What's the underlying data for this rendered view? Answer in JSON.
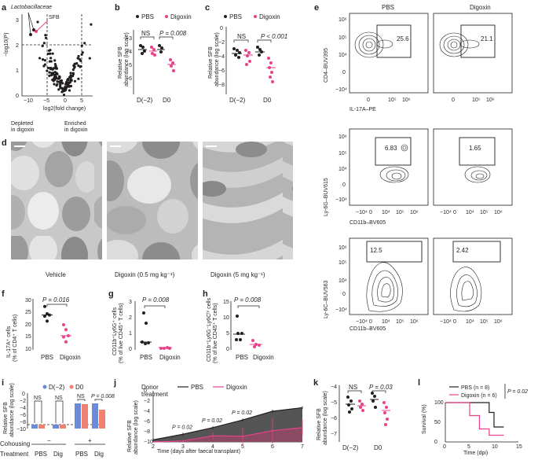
{
  "colors": {
    "pbs": "#231f20",
    "digoxin": "#e8428b",
    "blue": "#6a8bd8",
    "salmon": "#f08070",
    "sem_fill": "#555555",
    "lacto": "#e8428b"
  },
  "panel_labels": {
    "a": "a",
    "b": "b",
    "c": "c",
    "d": "d",
    "e": "e",
    "f": "f",
    "g": "g",
    "h": "h",
    "i": "i",
    "j": "j",
    "k": "k",
    "l": "l"
  },
  "legend": {
    "pbs": "PBS",
    "digoxin": "Digoxin"
  },
  "panel_a": {
    "ylabel": "−log10(P)",
    "xlabel": "log2(fold change)",
    "annot_lacto": "Lactobacillaceae",
    "annot_sfb": "SFB",
    "depleted": [
      "Depleted",
      "in digoxin"
    ],
    "enriched": [
      "Enriched",
      "in digoxin"
    ],
    "xticks": [
      "−10",
      "−5",
      "0",
      "5"
    ],
    "yticks": [
      "0",
      "1",
      "2",
      "3"
    ]
  },
  "panel_b": {
    "ylabel": [
      "Relative SFB",
      "abundance (log scale)"
    ],
    "stats": [
      "NS",
      "P = 0.008"
    ]
  },
  "panel_c": {
    "ylabel": [
      "Relative SFB",
      "abundance (log scale)"
    ],
    "stats": [
      "NS",
      "P < 0.001"
    ]
  },
  "panel_d": {
    "captions": [
      "Vehicle",
      "Digoxin (0.5 mg kg⁻¹)",
      "Digoxin (5 mg kg⁻¹)"
    ]
  },
  "panel_e": {
    "col_titles": [
      "PBS",
      "Digoxin"
    ],
    "row1": {
      "ylabel": "CD4–BUV395",
      "xlabel": "IL-17A–PE",
      "gates": [
        "25.6",
        "21.1"
      ]
    },
    "row2": {
      "ylabel": "Ly-6G–BUV615",
      "xlabel": "CD11b–BV605",
      "gates": [
        "6.83",
        "1.65"
      ]
    },
    "row3": {
      "ylabel": "Ly-6C–BUV563",
      "xlabel": "CD11b–BV605",
      "gates": [
        "12.5",
        "2.42"
      ]
    },
    "yticks": [
      "10⁶",
      "10⁵",
      "10⁴",
      "0",
      "−10⁴"
    ],
    "xticks": [
      "0",
      "10⁵",
      "10⁶"
    ],
    "xticks2": [
      "−10⁴",
      "0",
      "10⁴",
      "10⁵",
      "10⁶"
    ]
  },
  "panel_f": {
    "ylabel": [
      "IL-17A⁺ cells",
      "(% of CD4⁺ T cells)"
    ],
    "stat": "P = 0.016",
    "cats": [
      "PBS",
      "Digoxin"
    ],
    "yticks": [
      "30",
      "25",
      "20",
      "15",
      "10"
    ]
  },
  "panel_g": {
    "ylabel": [
      "CD11b⁺Ly6G⁺ cells",
      "(% of live CD45⁺ T cells)"
    ],
    "stat": "P = 0.008",
    "cats": [
      "PBS",
      "Digoxin"
    ],
    "yticks": [
      "3",
      "2",
      "1",
      "0"
    ]
  },
  "panel_h": {
    "ylabel": [
      "CD11b⁺Ly6G⁻Ly6Cʰⁱ cells",
      "(% of live CD45⁺ T cells)"
    ],
    "stat": "P = 0.008",
    "cats": [
      "PBS",
      "Digoxin"
    ],
    "yticks": [
      "15",
      "10",
      "5",
      "0"
    ]
  },
  "panel_i": {
    "ylabel": [
      "Relative SFB",
      "abundance (log scale)"
    ],
    "legend": [
      "D(−2)",
      "D0"
    ],
    "stats": [
      "NS",
      "NS",
      "NS",
      "P = 0.008"
    ],
    "cohousing_label": "Cohousing",
    "cohousing_vals": [
      "−",
      "+"
    ],
    "treatment_label": "Treatment",
    "treatments": [
      "PBS",
      "Dig",
      "PBS",
      "Dig"
    ],
    "yticks": [
      "0",
      "−2",
      "−4",
      "−6",
      "−8",
      "−10"
    ]
  },
  "panel_j": {
    "ylabel": [
      "Relative SFB",
      "abundance (log scale)"
    ],
    "xlabel": "Time (days after faecal transplant)",
    "legend_title": [
      "Donor",
      "treatment"
    ],
    "stats": [
      "P = 0.02",
      "P = 0.02",
      "P = 0.02"
    ],
    "xticks": [
      "2",
      "3",
      "4",
      "5",
      "6",
      "7"
    ],
    "yticks": [
      "0",
      "−2",
      "−4",
      "−6",
      "−8",
      "−10"
    ]
  },
  "panel_k": {
    "ylabel": [
      "Relative SFB",
      "abundance (log scale)"
    ],
    "stats": [
      "NS",
      "P = 0.03"
    ],
    "yticks": [
      "−4",
      "−5",
      "−6",
      "−7"
    ]
  },
  "panel_l": {
    "ylabel": "Survival (%)",
    "xlabel": "Time (dpi)",
    "legend": [
      "PBS (n = 8)",
      "Digoxin (n = 6)"
    ],
    "stat": "P = 0.02",
    "xticks": [
      "0",
      "5",
      "10",
      "15"
    ],
    "yticks": [
      "100",
      "50",
      "0"
    ]
  },
  "axis_ticks": {
    "b": [
      "−3",
      "−4",
      "−5",
      "−6"
    ],
    "b_x": [
      "D(−2)",
      "D0"
    ],
    "c": [
      "0",
      "−2",
      "−4",
      "−6",
      "−8"
    ],
    "c_x": [
      "D(−2)",
      "D0"
    ],
    "k_x": [
      "D(−2)",
      "D0"
    ]
  },
  "chart_data": [
    {
      "panel": "j",
      "type": "area",
      "x": [
        2,
        3,
        4,
        5,
        6,
        7
      ],
      "series": [
        {
          "name": "PBS",
          "values": [
            -9.6,
            -8.5,
            -7.2,
            -5.7,
            -4.0,
            -3.3
          ],
          "err": [
            0.3,
            0.3,
            0.3,
            0.3,
            0.3,
            0.3
          ]
        },
        {
          "name": "Digoxin",
          "values": [
            -10.0,
            -9.8,
            -8.8,
            -8.9,
            -7.8,
            -7.2
          ],
          "err": [
            0.1,
            0.2,
            0.6,
            1.7,
            2.5,
            1.5
          ]
        }
      ],
      "ylim": [
        -10,
        0
      ]
    },
    {
      "panel": "l",
      "type": "line",
      "x": [
        0,
        5,
        7,
        9,
        10,
        11,
        12
      ],
      "series": [
        {
          "name": "PBS (n = 8)",
          "values": [
            100,
            100,
            100,
            75,
            38,
            38,
            38
          ]
        },
        {
          "name": "Digoxin (n = 6)",
          "values": [
            100,
            67,
            33,
            17,
            17,
            17,
            17
          ]
        }
      ],
      "ylim": [
        0,
        100
      ],
      "xlim": [
        0,
        15
      ]
    },
    {
      "panel": "f",
      "type": "scatter",
      "categories": [
        "PBS",
        "Digoxin"
      ],
      "series": [
        {
          "name": "PBS",
          "values": [
            27.5,
            24.5,
            24,
            23.5,
            21.5
          ]
        },
        {
          "name": "Digoxin",
          "values": [
            20,
            18,
            15.5,
            15,
            13
          ]
        }
      ],
      "ylim": [
        10,
        30
      ]
    }
  ]
}
